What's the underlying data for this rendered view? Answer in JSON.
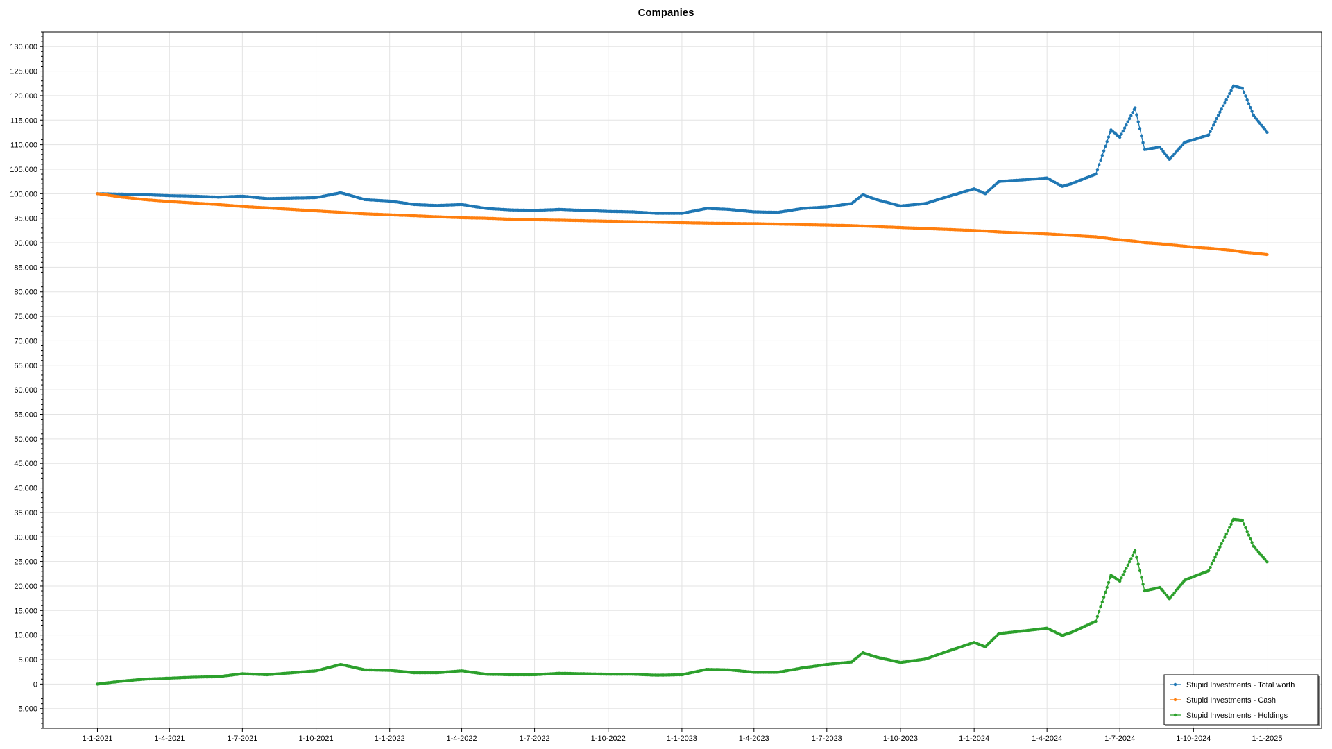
{
  "chart_data": {
    "type": "line",
    "title": "Companies",
    "xlabel": "",
    "ylabel": "",
    "x_tick_labels": [
      "1-1-2021",
      "1-4-2021",
      "1-7-2021",
      "1-10-2021",
      "1-1-2022",
      "1-4-2022",
      "1-7-2022",
      "1-10-2022",
      "1-1-2023",
      "1-4-2023",
      "1-7-2023",
      "1-10-2023",
      "1-1-2024",
      "1-4-2024",
      "1-7-2024",
      "1-10-2024",
      "1-1-2025"
    ],
    "y_tick_labels": [
      "-5.000",
      "0",
      "5.000",
      "10.000",
      "15.000",
      "20.000",
      "25.000",
      "30.000",
      "35.000",
      "40.000",
      "45.000",
      "50.000",
      "55.000",
      "60.000",
      "65.000",
      "70.000",
      "75.000",
      "80.000",
      "85.000",
      "90.000",
      "95.000",
      "100.000",
      "105.000",
      "110.000",
      "115.000",
      "120.000",
      "125.000",
      "130.000"
    ],
    "y_ticks": [
      -5000,
      0,
      5000,
      10000,
      15000,
      20000,
      25000,
      30000,
      35000,
      40000,
      45000,
      50000,
      55000,
      60000,
      65000,
      70000,
      75000,
      80000,
      85000,
      90000,
      95000,
      100000,
      105000,
      110000,
      115000,
      120000,
      125000,
      130000
    ],
    "ylim": [
      -9000,
      133000
    ],
    "xlim": [
      "2020-10-25",
      "2025-03-10"
    ],
    "grid": true,
    "legend_position": "bottom-right",
    "x": [
      "2021-01-01",
      "2021-02-01",
      "2021-03-01",
      "2021-04-01",
      "2021-05-01",
      "2021-06-01",
      "2021-07-01",
      "2021-08-01",
      "2021-09-01",
      "2021-10-01",
      "2021-11-01",
      "2021-12-01",
      "2022-01-01",
      "2022-02-01",
      "2022-03-01",
      "2022-04-01",
      "2022-05-01",
      "2022-06-01",
      "2022-07-01",
      "2022-08-01",
      "2022-09-01",
      "2022-10-01",
      "2022-11-01",
      "2022-12-01",
      "2023-01-01",
      "2023-02-01",
      "2023-03-01",
      "2023-04-01",
      "2023-05-01",
      "2023-06-01",
      "2023-07-01",
      "2023-08-01",
      "2023-08-15",
      "2023-09-01",
      "2023-10-01",
      "2023-11-01",
      "2023-12-01",
      "2024-01-01",
      "2024-01-15",
      "2024-02-01",
      "2024-03-01",
      "2024-04-01",
      "2024-04-20",
      "2024-05-01",
      "2024-06-01",
      "2024-06-20",
      "2024-07-01",
      "2024-07-20",
      "2024-08-01",
      "2024-08-20",
      "2024-09-01",
      "2024-09-20",
      "2024-10-01",
      "2024-10-20",
      "2024-11-01",
      "2024-11-20",
      "2024-12-01",
      "2024-12-15",
      "2025-01-01"
    ],
    "series": [
      {
        "name": "Stupid Investments - Total worth",
        "color": "#1f77b4",
        "values": [
          100000,
          99900,
          99800,
          99600,
          99500,
          99300,
          99500,
          99000,
          99100,
          99200,
          100200,
          98800,
          98500,
          97800,
          97600,
          97800,
          97000,
          96700,
          96600,
          96800,
          96600,
          96400,
          96300,
          96000,
          96000,
          97000,
          96800,
          96300,
          96200,
          97000,
          97300,
          98000,
          99800,
          98800,
          97500,
          98000,
          99500,
          101000,
          100000,
          102500,
          102800,
          103200,
          101500,
          102000,
          104000,
          113000,
          111500,
          117500,
          109000,
          109500,
          107000,
          110500,
          111000,
          112000,
          116000,
          122000,
          121500,
          116000,
          112500
        ]
      },
      {
        "name": "Stupid Investments - Cash",
        "color": "#ff7f0e",
        "values": [
          100000,
          99300,
          98800,
          98400,
          98100,
          97800,
          97400,
          97100,
          96800,
          96500,
          96200,
          95900,
          95700,
          95500,
          95300,
          95100,
          95000,
          94800,
          94700,
          94600,
          94500,
          94400,
          94300,
          94200,
          94100,
          94000,
          93950,
          93900,
          93800,
          93700,
          93600,
          93500,
          93400,
          93300,
          93100,
          92900,
          92700,
          92500,
          92400,
          92200,
          92000,
          91800,
          91600,
          91500,
          91200,
          90800,
          90600,
          90300,
          90000,
          89800,
          89600,
          89300,
          89100,
          88900,
          88700,
          88400,
          88100,
          87900,
          87600
        ]
      },
      {
        "name": "Stupid Investments - Holdings",
        "color": "#2ca02c",
        "values": [
          0,
          600,
          1000,
          1200,
          1400,
          1500,
          2100,
          1900,
          2300,
          2700,
          4000,
          2900,
          2800,
          2300,
          2300,
          2700,
          2000,
          1900,
          1900,
          2200,
          2100,
          2000,
          2000,
          1800,
          1900,
          3000,
          2900,
          2400,
          2400,
          3300,
          4000,
          4500,
          6400,
          5500,
          4400,
          5100,
          6800,
          8500,
          7600,
          10300,
          10800,
          11400,
          9900,
          10500,
          12800,
          22200,
          21000,
          27200,
          19000,
          19700,
          17400,
          21200,
          21900,
          23100,
          27300,
          33600,
          33400,
          28100,
          24900
        ]
      }
    ]
  }
}
